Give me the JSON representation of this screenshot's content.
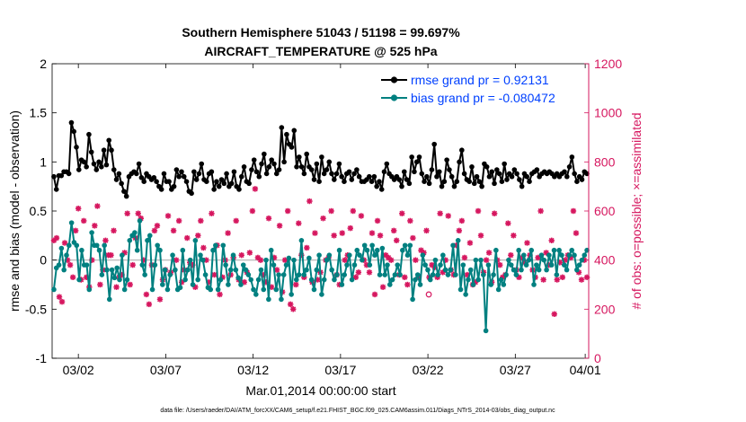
{
  "chart_data": {
    "type": "line",
    "title": "Southern Hemisphere 51043 / 51198 = 99.697%",
    "subtitle": "AIRCRAFT_TEMPERATURE @ 525 hPa",
    "xlabel": "Mar.01,2014 00:00:00 start",
    "ylabel_left": "rmse and bias (model - observation)",
    "ylabel_right": "# of obs: o=possible; ×=assimilated",
    "footnote": "data file: /Users/raeder/DAI/ATM_forcXX/CAM6_setup/f.e21.FHIST_BGC.f09_025.CAM6assim.011/Diags_NTrS_2014-03/obs_diag_output.nc",
    "xlim": [
      0.5,
      31.2
    ],
    "ylim_left": [
      -1,
      2
    ],
    "ylim_right": [
      0,
      1200
    ],
    "x_ticks": [
      {
        "value": 2,
        "label": "03/02"
      },
      {
        "value": 7,
        "label": "03/07"
      },
      {
        "value": 12,
        "label": "03/12"
      },
      {
        "value": 17,
        "label": "03/17"
      },
      {
        "value": 22,
        "label": "03/22"
      },
      {
        "value": 27,
        "label": "03/27"
      },
      {
        "value": 31,
        "label": "04/01"
      }
    ],
    "y_ticks_left": [
      "-1",
      "-0.5",
      "0",
      "0.5",
      "1",
      "1.5",
      "2"
    ],
    "y_ticks_right": [
      "0",
      "200",
      "400",
      "600",
      "800",
      "1000",
      "1200"
    ],
    "colors": {
      "rmse": "#000000",
      "bias": "#008080",
      "obs": "#d6175f",
      "zero_line": "#c0c0c0",
      "legend_text": "#0040ff"
    },
    "legend": [
      {
        "name": "rmse grand pr = 0.92131",
        "series": "rmse"
      },
      {
        "name": "bias grand pr = -0.080472",
        "series": "bias"
      }
    ],
    "series": [
      {
        "name": "rmse",
        "values": [
          0.85,
          0.72,
          0.86,
          0.86,
          0.9,
          0.9,
          0.88,
          1.4,
          1.31,
          1.15,
          0.92,
          1.02,
          1.0,
          0.95,
          1.28,
          1.1,
          0.98,
          0.92,
          1.0,
          0.95,
          1.12,
          0.97,
          1.22,
          1.12,
          0.92,
          0.82,
          0.88,
          0.78,
          0.7,
          0.65,
          0.85,
          0.88,
          0.9,
          0.88,
          0.98,
          0.84,
          0.8,
          0.88,
          0.85,
          0.82,
          0.84,
          0.8,
          0.75,
          0.72,
          0.88,
          0.8,
          0.8,
          0.72,
          0.75,
          0.92,
          0.85,
          0.9,
          0.85,
          0.8,
          0.7,
          0.68,
          0.9,
          0.82,
          0.88,
          0.98,
          0.82,
          0.8,
          0.88,
          0.9,
          0.72,
          0.8,
          0.75,
          0.82,
          0.78,
          0.88,
          0.75,
          0.78,
          0.9,
          0.75,
          0.72,
          0.85,
          0.95,
          0.8,
          0.78,
          0.92,
          1.02,
          0.9,
          0.85,
          0.98,
          1.08,
          0.88,
          0.95,
          1.02,
          0.98,
          0.88,
          0.92,
          1.35,
          1.0,
          1.28,
          1.18,
          1.15,
          1.32,
          0.95,
          1.05,
          0.95,
          0.88,
          1.08,
          0.95,
          0.92,
          0.82,
          0.98,
          0.8,
          1.05,
          0.88,
          0.92,
          1.0,
          0.88,
          0.82,
          0.88,
          0.98,
          0.85,
          0.8,
          0.88,
          0.9,
          0.82,
          0.88,
          0.92,
          0.85,
          0.8,
          0.8,
          0.82,
          0.85,
          0.8,
          0.85,
          0.75,
          0.8,
          0.72,
          0.9,
          0.98,
          0.88,
          0.85,
          0.82,
          0.85,
          0.82,
          0.75,
          0.9,
          0.82,
          0.78,
          1.05,
          0.9,
          1.0,
          1.05,
          0.88,
          0.8,
          0.85,
          0.78,
          0.92,
          1.18,
          0.85,
          0.9,
          0.75,
          0.8,
          1.02,
          0.92,
          0.85,
          0.75,
          0.8,
          1.0,
          1.12,
          0.88,
          0.82,
          0.8,
          0.95,
          0.78,
          0.85,
          0.8,
          0.75,
          0.98,
          0.95,
          0.85,
          0.9,
          0.78,
          0.92,
          0.88,
          0.8,
          0.98,
          0.82,
          0.88,
          0.85,
          0.92,
          0.88,
          0.82,
          0.75,
          0.88,
          0.85,
          0.8,
          0.88,
          0.9,
          0.92,
          0.85,
          0.88,
          0.9,
          0.88,
          0.9,
          0.88,
          0.85,
          0.88,
          0.85,
          0.88,
          0.9,
          0.85,
          0.95,
          1.05,
          0.88,
          0.8,
          0.85,
          0.82,
          0.9,
          0.88
        ]
      },
      {
        "name": "bias",
        "values": [
          -0.3,
          -0.08,
          -0.05,
          0.12,
          -0.1,
          0.05,
          0.15,
          0.38,
          0.18,
          0.15,
          -0.2,
          0.1,
          -0.05,
          -0.05,
          -0.3,
          0.28,
          0.15,
          0.15,
          0.1,
          -0.15,
          0.15,
          -0.1,
          -0.4,
          -0.1,
          -0.18,
          -0.08,
          -0.2,
          0.05,
          -0.3,
          -0.2,
          0.2,
          0.25,
          0.28,
          0.1,
          0.4,
          -0.05,
          -0.15,
          0.2,
          0.25,
          -0.3,
          -0.05,
          0.15,
          0.1,
          -0.25,
          -0.1,
          -0.3,
          -0.15,
          0.05,
          -0.1,
          -0.3,
          -0.28,
          0.1,
          -0.2,
          -0.1,
          0.0,
          -0.25,
          0.2,
          -0.2,
          0.05,
          0.0,
          -0.15,
          -0.28,
          -0.3,
          0.1,
          0.15,
          -0.3,
          -0.2,
          0.15,
          -0.05,
          -0.25,
          -0.1,
          0.05,
          -0.1,
          -0.18,
          -0.25,
          -0.05,
          -0.1,
          -0.15,
          -0.2,
          -0.3,
          -0.35,
          -0.2,
          -0.1,
          -0.3,
          0.0,
          -0.4,
          0.1,
          -0.05,
          -0.3,
          -0.15,
          -0.4,
          -0.15,
          -0.05,
          0.02,
          -0.35,
          0.0,
          -0.2,
          -0.15,
          0.2,
          -0.15,
          -0.1,
          0.02,
          -0.2,
          -0.3,
          -0.1,
          0.05,
          -0.35,
          -0.2,
          0.0,
          0.05,
          -0.1,
          -0.2,
          -0.15,
          0.1,
          -0.25,
          -0.15,
          -0.05,
          0.05,
          -0.2,
          -0.05,
          0.1,
          0.05,
          0.0,
          0.15,
          0.1,
          -0.05,
          0.15,
          0.05,
          0.1,
          -0.15,
          0.12,
          -0.15,
          -0.05,
          -0.25,
          -0.2,
          -0.15,
          -0.05,
          -0.15,
          0.1,
          0.15,
          0.05,
          0.15,
          -0.4,
          -0.2,
          -0.15,
          -0.25,
          0.05,
          -0.05,
          -0.1,
          -0.2,
          -0.15,
          0.0,
          -0.15,
          -0.05,
          0.05,
          -0.1,
          -0.15,
          -0.1,
          0.15,
          -0.15,
          0.2,
          -0.3,
          -0.05,
          -0.35,
          -0.2,
          -0.1,
          -0.25,
          0.0,
          -0.2,
          0.0,
          -0.15,
          -0.72,
          -0.05,
          -0.25,
          -0.15,
          0.1,
          -0.3,
          -0.2,
          -0.25,
          -0.15,
          0.0,
          -0.05,
          -0.1,
          -0.15,
          0.1,
          -0.1,
          0.05,
          -0.05,
          0.0,
          0.1,
          -0.25,
          -0.05,
          -0.1,
          0.05,
          0.0,
          -0.1,
          0.05,
          -0.05,
          0.1,
          -0.15,
          0.1,
          0.05,
          -0.05,
          -0.1,
          0.05,
          0.1,
          0.05,
          -0.1,
          -0.05,
          0.0,
          0.05,
          0.1
        ]
      },
      {
        "name": "obs_assimilated",
        "values": [
          480,
          490,
          250,
          230,
          470,
          400,
          380,
          330,
          520,
          610,
          320,
          560,
          330,
          290,
          400,
          540,
          620,
          300,
          360,
          480,
          420,
          420,
          520,
          290,
          330,
          340,
          430,
          590,
          300,
          380,
          490,
          590,
          570,
          400,
          260,
          220,
          380,
          520,
          540,
          240,
          320,
          360,
          580,
          350,
          520,
          400,
          560,
          310,
          360,
          490,
          390,
          380,
          290,
          500,
          560,
          450,
          400,
          310,
          590,
          340,
          460,
          260,
          330,
          400,
          510,
          340,
          410,
          560,
          320,
          420,
          310,
          350,
          430,
          600,
          690,
          410,
          400,
          340,
          310,
          570,
          290,
          410,
          360,
          540,
          270,
          400,
          600,
          220,
          200,
          300,
          550,
          420,
          330,
          450,
          640,
          310,
          510,
          320,
          350,
          570,
          400,
          410,
          600,
          500,
          340,
          300,
          510,
          400,
          420,
          530,
          600,
          330,
          350,
          580,
          400,
          380,
          350,
          510,
          260,
          560,
          500,
          290,
          420,
          410,
          400,
          520,
          480,
          340,
          590,
          330,
          300,
          560,
          490,
          400,
          330,
          440,
          430,
          520,
          330,
          380,
          370,
          330,
          590,
          350,
          400,
          580,
          360,
          340,
          460,
          520,
          560,
          410,
          340,
          470,
          300,
          310,
          600,
          500,
          350,
          400,
          430,
          310,
          590,
          400,
          380,
          330,
          340,
          550,
          420,
          500,
          360,
          330,
          410,
          390,
          470,
          420,
          360,
          330,
          410,
          600,
          320,
          430,
          380,
          480,
          180,
          320,
          390,
          330,
          400,
          420,
          410,
          600,
          510,
          350,
          320,
          400,
          330
        ]
      }
    ],
    "obs_possible_marker": {
      "x": 22.05,
      "y": 260
    }
  }
}
